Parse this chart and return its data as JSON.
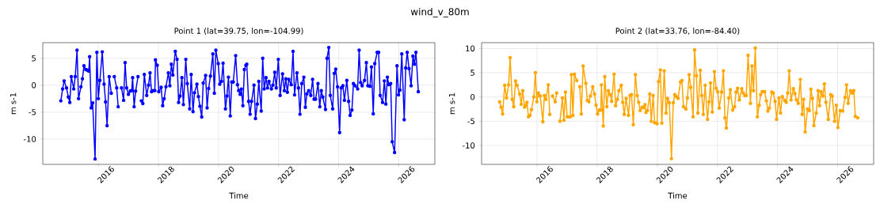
{
  "chart_data": [
    {
      "type": "line",
      "title": "Point 1 (lat=39.75, lon=-104.99)",
      "xlabel": "Time",
      "ylabel": "m s-1",
      "annotations": [
        "wind_v_80m"
      ],
      "color": "#0000ff",
      "marker": "circle",
      "grid": true,
      "xlim": [
        2014.15,
        2027.2
      ],
      "ylim": [
        -14.7,
        7.9
      ],
      "xticks": [
        2016,
        2018,
        2020,
        2022,
        2024,
        2026
      ],
      "yticks": [
        -10,
        -5,
        0,
        5
      ],
      "x": [
        2014.75,
        2014.81,
        2014.86,
        2014.94,
        2015.0,
        2015.05,
        2015.1,
        2015.18,
        2015.23,
        2015.29,
        2015.34,
        2015.42,
        2015.47,
        2015.52,
        2015.58,
        2015.63,
        2015.68,
        2015.71,
        2015.76,
        2015.81,
        2015.89,
        2015.95,
        2016.0,
        2016.05,
        2016.13,
        2016.19,
        2016.24,
        2016.29,
        2016.36,
        2016.43,
        2016.48,
        2016.53,
        2016.61,
        2016.66,
        2016.72,
        2016.77,
        2016.84,
        2016.89,
        2016.94,
        2017.0,
        2017.06,
        2017.11,
        2017.14,
        2017.19,
        2017.24,
        2017.32,
        2017.38,
        2017.43,
        2017.48,
        2017.53,
        2017.61,
        2017.67,
        2017.72,
        2017.77,
        2017.82,
        2017.88,
        2017.9,
        2017.96,
        2018.01,
        2018.09,
        2018.14,
        2018.19,
        2018.25,
        2018.33,
        2018.38,
        2018.43,
        2018.48,
        2018.56,
        2018.62,
        2018.67,
        2018.72,
        2018.78,
        2018.83,
        2018.91,
        2018.96,
        2019.04,
        2019.09,
        2019.15,
        2019.2,
        2019.28,
        2019.33,
        2019.38,
        2019.44,
        2019.49,
        2019.57,
        2019.62,
        2019.67,
        2019.73,
        2019.81,
        2019.86,
        2019.91,
        2019.99,
        2020.04,
        2020.1,
        2020.15,
        2020.23,
        2020.28,
        2020.33,
        2020.39,
        2020.44,
        2020.49,
        2020.57,
        2020.63,
        2020.67,
        2020.72,
        2020.76,
        2020.81,
        2020.86,
        2020.91,
        2020.94,
        2021.0,
        2021.05,
        2021.1,
        2021.18,
        2021.23,
        2021.29,
        2021.34,
        2021.42,
        2021.47,
        2021.52,
        2021.58,
        2021.63,
        2021.68,
        2021.76,
        2021.81,
        2021.87,
        2021.92,
        2021.99,
        2022.05,
        2022.13,
        2022.19,
        2022.24,
        2022.29,
        2022.34,
        2022.42,
        2022.48,
        2022.53,
        2022.61,
        2022.66,
        2022.71,
        2022.77,
        2022.84,
        2022.89,
        2022.94,
        2023.0,
        2023.07,
        2023.13,
        2023.18,
        2023.23,
        2023.31,
        2023.37,
        2023.42,
        2023.47,
        2023.56,
        2023.61,
        2023.67,
        2023.72,
        2023.8,
        2023.85,
        2023.9,
        2023.96,
        2024.03,
        2024.08,
        2024.14,
        2024.19,
        2024.27,
        2024.33,
        2024.38,
        2024.44,
        2024.49,
        2024.55,
        2024.63,
        2024.68,
        2024.73,
        2024.78,
        2024.86,
        2024.92,
        2024.97,
        2025.04,
        2025.09,
        2025.15,
        2025.2,
        2025.28,
        2025.33,
        2025.38,
        2025.46,
        2025.52,
        2025.57,
        2025.62,
        2025.67,
        2025.73,
        2025.78,
        2025.86,
        2025.94,
        2025.99,
        2026.04,
        2026.1,
        2026.18,
        2026.23,
        2026.28,
        2026.34,
        2026.41,
        2026.47,
        2026.52,
        2026.57,
        2026.65
      ],
      "values": [
        -2.9,
        -0.7,
        0.8,
        -0.5,
        -2.2,
        -3.2,
        1.6,
        -0.7,
        1.6,
        6.5,
        -2.5,
        -0.3,
        1.2,
        3.6,
        2.9,
        2.8,
        2.6,
        5.3,
        -4.2,
        -3.3,
        -13.7,
        6.1,
        -2.5,
        0.9,
        6.2,
        0.2,
        -3.1,
        -7.5,
        1.6,
        -1.5,
        null,
        1.6,
        -0.5,
        -4.0,
        null,
        -0.5,
        -2.8,
        4.2,
        -0.5,
        -1.7,
        -1.1,
        -1.0,
        1.4,
        -4.0,
        -1.1,
        1.6,
        null,
        -2.9,
        -3.4,
        2.0,
        -1.9,
        0.0,
        2.3,
        -1.2,
        -1.0,
        -1.0,
        4.7,
        3.7,
        -1.2,
        -0.4,
        -3.8,
        -2.5,
        -0.3,
        2.3,
        -0.1,
        3.9,
        1.9,
        6.3,
        4.8,
        -3.2,
        -2.0,
        1.4,
        -3.6,
        4.8,
        0.3,
        -4.4,
        2.0,
        -4.9,
        -1.4,
        0.2,
        -2.1,
        -3.9,
        -5.9,
        0.4,
        1.8,
        -4.2,
        -0.6,
        1.7,
        5.8,
        -1.5,
        6.5,
        4.0,
        0.2,
        0.7,
        4.1,
        -4.4,
        -2.0,
        1.5,
        -5.7,
        0.6,
        0.6,
        5.5,
        0.1,
        -1.0,
        -1.7,
        -0.7,
        -3.8,
        2.9,
        3.7,
        3.9,
        -3.0,
        -5.4,
        -3.0,
        0.0,
        -6.2,
        -3.5,
        0.7,
        -4.8,
        5.0,
        -0.7,
        1.4,
        -0.5,
        0.7,
        -0.7,
        0.0,
        2.4,
        -0.5,
        4.8,
        -1.9,
        2.1,
        -1.0,
        1.2,
        -1.3,
        1.1,
        0.1,
        6.3,
        -1.8,
        2.3,
        -0.5,
        -5.4,
        0.3,
        1.5,
        -4.1,
        -1.6,
        -1.0,
        -1.9,
        1.1,
        -2.6,
        -2.6,
        0.3,
        -4.0,
        -1.0,
        -2.2,
        -4.5,
        5.0,
        7.0,
        -1.9,
        -4.4,
        2.2,
        3.0,
        -0.3,
        -8.8,
        -0.5,
        -0.1,
        -2.8,
        0.9,
        -3.0,
        -5.6,
        -4.6,
        0.3,
        -0.1,
        -0.7,
        6.5,
        0.5,
        -0.1,
        0.9,
        4.2,
        -0.1,
        -0.2,
        3.4,
        -5.3,
        4.0,
        6.1,
        6.1,
        -1.9,
        -3.2,
        0.8,
        -3.5,
        1.5,
        0.1,
        0.3,
        -10.5,
        -12.5,
        3.6,
        -1.8,
        -0.9,
        5.8,
        -6.4,
        3.2,
        6.1,
        3.1,
        -0.1,
        5.4,
        3.9,
        6.1,
        -1.2
      ]
    },
    {
      "type": "line",
      "title": "Point 2 (lat=33.76, lon=-84.40)",
      "xlabel": "Time",
      "ylabel": "m s-1",
      "color": "#ffa500",
      "marker": "circle",
      "grid": true,
      "xlim": [
        2014.15,
        2027.2
      ],
      "ylim": [
        -13.9,
        11.2
      ],
      "xticks": [
        2016,
        2018,
        2020,
        2022,
        2024,
        2026
      ],
      "yticks": [
        -10,
        -5,
        0,
        5,
        10
      ],
      "x": [
        2014.75,
        2014.8,
        2014.85,
        2014.92,
        2014.98,
        2015.05,
        2015.1,
        2015.17,
        2015.22,
        2015.28,
        2015.33,
        2015.42,
        2015.47,
        2015.52,
        2015.58,
        2015.63,
        2015.66,
        2015.71,
        2015.76,
        2015.81,
        2015.89,
        2015.94,
        2015.99,
        2016.04,
        2016.1,
        2016.19,
        2016.24,
        2016.29,
        2016.37,
        2016.42,
        2016.47,
        2016.51,
        2016.6,
        2016.65,
        2016.7,
        2016.76,
        2016.84,
        2016.89,
        2016.94,
        2017.0,
        2017.05,
        2017.1,
        2017.14,
        2017.19,
        2017.24,
        2017.32,
        2017.37,
        2017.42,
        2017.47,
        2017.53,
        2017.62,
        2017.67,
        2017.72,
        2017.77,
        2017.85,
        2017.91,
        2017.96,
        2018.01,
        2018.07,
        2018.12,
        2018.14,
        2018.2,
        2018.25,
        2018.32,
        2018.37,
        2018.43,
        2018.48,
        2018.56,
        2018.61,
        2018.67,
        2018.72,
        2018.8,
        2018.85,
        2018.9,
        2018.96,
        2019.04,
        2019.09,
        2019.14,
        2019.2,
        2019.27,
        2019.33,
        2019.38,
        2019.43,
        2019.49,
        2019.54,
        2019.59,
        2019.62,
        2019.67,
        2019.75,
        2019.8,
        2019.86,
        2019.91,
        2019.99,
        2020.04,
        2020.1,
        2020.15,
        2020.23,
        2020.29,
        2020.34,
        2020.4,
        2020.47,
        2020.53,
        2020.58,
        2020.63,
        2020.69,
        2020.77,
        2020.82,
        2020.87,
        2020.95,
        2021.0,
        2021.06,
        2021.11,
        2021.19,
        2021.24,
        2021.3,
        2021.35,
        2021.43,
        2021.48,
        2021.53,
        2021.59,
        2021.67,
        2021.72,
        2021.77,
        2021.83,
        2021.9,
        2021.96,
        2022.01,
        2022.06,
        2022.14,
        2022.2,
        2022.25,
        2022.3,
        2022.38,
        2022.43,
        2022.51,
        2022.57,
        2022.62,
        2022.67,
        2022.73,
        2022.81,
        2022.86,
        2022.91,
        2022.96,
        2023.02,
        2023.1,
        2023.15,
        2023.2,
        2023.26,
        2023.33,
        2023.39,
        2023.44,
        2023.49,
        2023.57,
        2023.63,
        2023.68,
        2023.73,
        2023.81,
        2023.86,
        2023.92,
        2023.97,
        2024.05,
        2024.1,
        2024.16,
        2024.24,
        2024.29,
        2024.34,
        2024.39,
        2024.45,
        2024.53,
        2024.58,
        2024.63,
        2024.69,
        2024.76,
        2024.82,
        2024.87,
        2024.92,
        2025.0,
        2025.06,
        2025.11,
        2025.16,
        2025.21,
        2025.29,
        2025.35,
        2025.4,
        2025.45,
        2025.51,
        2025.56,
        2025.61,
        2025.69,
        2025.77,
        2025.82,
        2025.9,
        2025.96,
        2026.01,
        2026.09,
        2026.17,
        2026.25,
        2026.3,
        2026.35,
        2026.43,
        2026.49,
        2026.54,
        2026.59,
        2026.67
      ],
      "values": [
        -1.0,
        -2.1,
        -3.5,
        2.4,
        -0.2,
        2.5,
        8.1,
        -0.5,
        -2.0,
        3.3,
        2.4,
        0.6,
        -1.5,
        1.3,
        -2.1,
        -1.7,
        -1.1,
        -4.1,
        -3.8,
        -2.6,
        0.0,
        5.0,
        -1.0,
        0.8,
        0.2,
        -5.1,
        0.3,
        -0.5,
        2.5,
        -3.6,
        null,
        0.2,
        -1.0,
        0.8,
        null,
        -5.0,
        -0.2,
        -4.8,
        1.0,
        -4.1,
        -4.1,
        -4.1,
        4.6,
        -3.8,
        4.7,
        3.4,
        null,
        2.1,
        -3.5,
        6.4,
        2.8,
        -0.7,
        -1.0,
        0.2,
        2.1,
        0.6,
        -1.7,
        -3.5,
        -2.7,
        -2.7,
        2.5,
        -6.0,
        4.2,
        -2.0,
        1.3,
        0.5,
        -0.9,
        4.7,
        -1.8,
        -0.5,
        1.3,
        2.4,
        -1.1,
        -3.6,
        -0.3,
        -3.8,
        0.3,
        0.5,
        -5.7,
        4.6,
        0.3,
        -1.1,
        -2.8,
        -2.1,
        -2.2,
        -1.6,
        -3.2,
        -2.8,
        0.6,
        -5.0,
        0.3,
        -5.3,
        -5.5,
        3.2,
        5.6,
        -5.4,
        5.4,
        -3.3,
        -0.3,
        -1.2,
        -12.7,
        -1.2,
        0.5,
        0.1,
        -0.3,
        3.1,
        3.4,
        -2.0,
        -2.5,
        -0.2,
        4.6,
        2.0,
        -4.1,
        9.7,
        4.4,
        -3.3,
        5.5,
        0.3,
        -3.6,
        2.4,
        -4.6,
        -1.0,
        2.9,
        -3.1,
        5.2,
        1.8,
        1.1,
        -2.3,
        1.0,
        5.4,
        -4.3,
        -6.4,
        -0.2,
        1.5,
        -2.7,
        -2.0,
        1.0,
        1.8,
        -0.6,
        1.7,
        0.8,
        0.3,
        0.3,
        8.6,
        -1.3,
        6.4,
        1.3,
        10.1,
        -4.1,
        -1.7,
        0.5,
        1.1,
        1.1,
        -0.8,
        -2.9,
        -2.3,
        1.0,
        0.8,
        -0.9,
        -4.6,
        -0.2,
        -3.3,
        0.1,
        -0.7,
        -1.1,
        0.8,
        5.4,
        -0.6,
        1.7,
        0.7,
        -0.6,
        -1.3,
        3.6,
        -3.6,
        -0.5,
        -7.2,
        -2.5,
        -2.8,
        1.6,
        -0.3,
        -5.9,
        -3.3,
        1.3,
        -1.8,
        1.1,
        0.2,
        2.7,
        -1.1,
        -4.6,
        0.5,
        0.2,
        -5.0,
        -1.7,
        -6.3,
        -2.8,
        -2.9,
        -0.1,
        2.5,
        -1.3,
        1.3,
        0.8,
        1.3,
        -4.0,
        -4.3
      ]
    }
  ]
}
